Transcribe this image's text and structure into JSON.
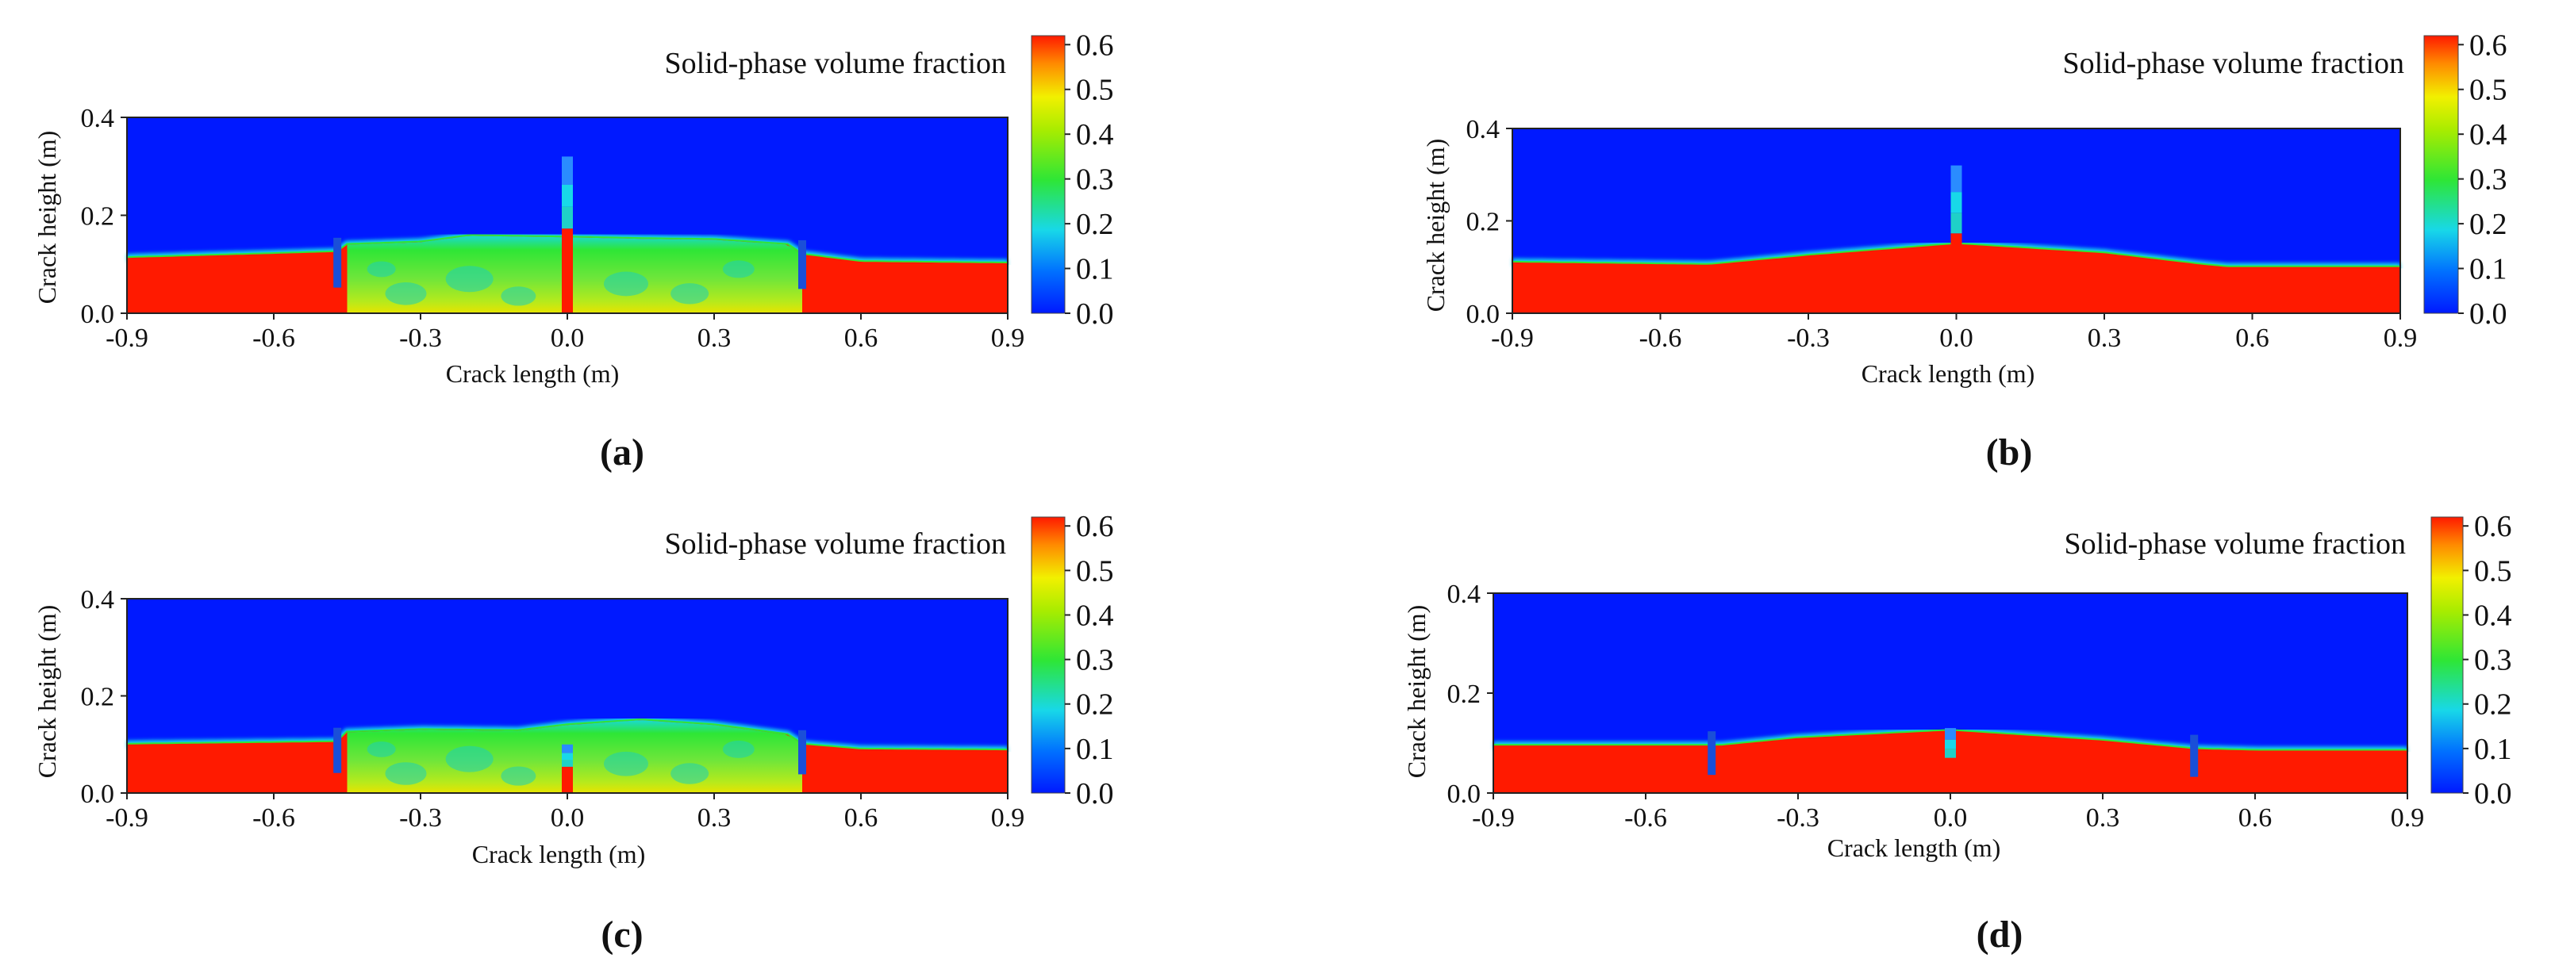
{
  "figure": {
    "colors": {
      "blue": "#0019ff",
      "cyan": "#18d8e8",
      "green": "#2ee636",
      "yellow": "#f2f000",
      "orange": "#ff8a00",
      "red": "#ff1a00"
    },
    "panels": [
      {
        "id": "a",
        "caption": "(a)",
        "colorbar_title": "Solid-phase volume fraction",
        "chart_data": {
          "type": "heatmap",
          "title": "Solid-phase volume fraction",
          "xlabel": "Crack length (m)",
          "ylabel": "Crack height (m)",
          "xlim": [
            -0.9,
            0.9
          ],
          "ylim": [
            0.0,
            0.4
          ],
          "xticks": [
            "-0.9",
            "-0.6",
            "-0.3",
            "0.0",
            "0.3",
            "0.6",
            "0.9"
          ],
          "yticks": [
            "0.0",
            "0.2",
            "0.4"
          ],
          "colorbar": {
            "range": [
              0.0,
              0.62
            ],
            "ticks": [
              "0.0",
              "0.1",
              "0.2",
              "0.3",
              "0.4",
              "0.5",
              "0.6"
            ]
          },
          "bed_profile": {
            "x": [
              -0.9,
              -0.47,
              -0.45,
              -0.3,
              -0.2,
              0.0,
              0.15,
              0.3,
              0.45,
              0.48,
              0.6,
              0.9
            ],
            "y": [
              0.113,
              0.125,
              0.14,
              0.145,
              0.158,
              0.155,
              0.152,
              0.15,
              0.14,
              0.12,
              0.105,
              0.102
            ]
          },
          "mixed_zone": {
            "x_range": [
              -0.45,
              0.48
            ],
            "value": 0.35
          },
          "perforation_column": {
            "x": 0.0,
            "y_top": 0.32
          },
          "perforation_markers": [
            -0.47,
            0.48
          ]
        }
      },
      {
        "id": "b",
        "caption": "(b)",
        "colorbar_title": "Solid-phase volume fraction",
        "chart_data": {
          "type": "heatmap",
          "title": "Solid-phase volume fraction",
          "xlabel": "Crack length (m)",
          "ylabel": "Crack height (m)",
          "xlim": [
            -0.9,
            0.9
          ],
          "ylim": [
            0.0,
            0.4
          ],
          "xticks": [
            "-0.9",
            "-0.6",
            "-0.3",
            "0.0",
            "0.3",
            "0.6",
            "0.9"
          ],
          "yticks": [
            "0.0",
            "0.2",
            "0.4"
          ],
          "colorbar": {
            "range": [
              0.0,
              0.62
            ],
            "ticks": [
              "0.0",
              "0.1",
              "0.2",
              "0.3",
              "0.4",
              "0.5",
              "0.6"
            ]
          },
          "bed_profile": {
            "x": [
              -0.9,
              -0.5,
              -0.45,
              -0.3,
              0.0,
              0.3,
              0.5,
              0.55,
              0.9
            ],
            "y": [
              0.11,
              0.105,
              0.11,
              0.125,
              0.15,
              0.13,
              0.105,
              0.1,
              0.1
            ]
          },
          "mixed_zone": null,
          "perforation_column": {
            "x": 0.0,
            "y_top": 0.32
          },
          "perforation_markers": []
        }
      },
      {
        "id": "c",
        "caption": "(c)",
        "colorbar_title": "Solid-phase volume fraction",
        "chart_data": {
          "type": "heatmap",
          "title": "Solid-phase volume fraction",
          "xlabel": "Crack length (m)",
          "ylabel": "Crack height (m)",
          "xlim": [
            -0.9,
            0.9
          ],
          "ylim": [
            0.0,
            0.4
          ],
          "xticks": [
            "-0.9",
            "-0.6",
            "-0.3",
            "0.0",
            "0.3",
            "0.6",
            "0.9"
          ],
          "yticks": [
            "0.0",
            "0.2",
            "0.4"
          ],
          "colorbar": {
            "range": [
              0.0,
              0.62
            ],
            "ticks": [
              "0.0",
              "0.1",
              "0.2",
              "0.3",
              "0.4",
              "0.5",
              "0.6"
            ]
          },
          "bed_profile": {
            "x": [
              -0.9,
              -0.47,
              -0.45,
              -0.3,
              -0.1,
              0.0,
              0.15,
              0.3,
              0.45,
              0.48,
              0.6,
              0.9
            ],
            "y": [
              0.1,
              0.105,
              0.125,
              0.13,
              0.128,
              0.14,
              0.15,
              0.14,
              0.12,
              0.1,
              0.09,
              0.088
            ]
          },
          "mixed_zone": {
            "x_range": [
              -0.45,
              0.48
            ],
            "value": 0.35
          },
          "perforation_column": {
            "x": 0.0,
            "y_top": 0.1
          },
          "perforation_markers": [
            -0.47,
            0.48
          ]
        }
      },
      {
        "id": "d",
        "caption": "(d)",
        "colorbar_title": "Solid-phase volume fraction",
        "chart_data": {
          "type": "heatmap",
          "title": "Solid-phase volume fraction",
          "xlabel": "Crack length (m)",
          "ylabel": "Crack height (m)",
          "xlim": [
            -0.9,
            0.9
          ],
          "ylim": [
            0.0,
            0.4
          ],
          "xticks": [
            "-0.9",
            "-0.6",
            "-0.3",
            "0.0",
            "0.3",
            "0.6",
            "0.9"
          ],
          "yticks": [
            "0.0",
            "0.2",
            "0.4"
          ],
          "colorbar": {
            "range": [
              0.0,
              0.62
            ],
            "ticks": [
              "0.0",
              "0.1",
              "0.2",
              "0.3",
              "0.4",
              "0.5",
              "0.6"
            ]
          },
          "bed_profile": {
            "x": [
              -0.9,
              -0.45,
              -0.3,
              0.0,
              0.3,
              0.48,
              0.6,
              0.9
            ],
            "y": [
              0.095,
              0.095,
              0.11,
              0.125,
              0.105,
              0.088,
              0.085,
              0.085
            ]
          },
          "mixed_zone": null,
          "perforation_column": {
            "x": 0.0,
            "y_top": 0.13
          },
          "perforation_markers": [
            -0.47,
            0.48
          ]
        }
      }
    ]
  }
}
